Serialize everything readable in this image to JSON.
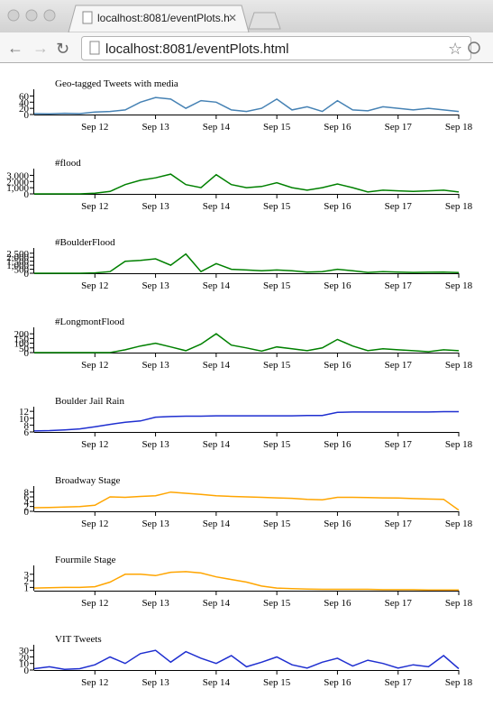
{
  "browser": {
    "tab_title": "localhost:8081/eventPlots.h",
    "url": "localhost:8081/eventPlots.html"
  },
  "chart_data": [
    {
      "type": "line",
      "title": "Geo-tagged Tweets with media",
      "color": "#4682b4",
      "x": [
        11,
        11.25,
        11.5,
        11.75,
        12,
        12.25,
        12.5,
        12.75,
        13,
        13.25,
        13.5,
        13.75,
        14,
        14.25,
        14.5,
        14.75,
        15,
        15.25,
        15.5,
        15.75,
        16,
        16.25,
        16.5,
        16.75,
        17,
        17.25,
        17.5,
        17.75,
        18
      ],
      "values": [
        3,
        2,
        4,
        3,
        8,
        10,
        15,
        40,
        55,
        50,
        20,
        45,
        40,
        15,
        10,
        20,
        50,
        15,
        25,
        10,
        45,
        15,
        12,
        25,
        20,
        15,
        20,
        15,
        10
      ],
      "xlim": [
        11,
        18
      ],
      "xticks": [
        {
          "value": 12,
          "label": "Sep 12"
        },
        {
          "value": 13,
          "label": "Sep 13"
        },
        {
          "value": 14,
          "label": "Sep 14"
        },
        {
          "value": 15,
          "label": "Sep 15"
        },
        {
          "value": 16,
          "label": "Sep 16"
        },
        {
          "value": 17,
          "label": "Sep 17"
        },
        {
          "value": 18,
          "label": "Sep 18"
        }
      ],
      "ylim": [
        0,
        70
      ],
      "yticks": [
        0,
        20,
        40,
        60
      ]
    },
    {
      "type": "line",
      "title": "#flood",
      "color": "#008000",
      "x": [
        11,
        11.25,
        11.5,
        11.75,
        12,
        12.25,
        12.5,
        12.75,
        13,
        13.25,
        13.5,
        13.75,
        14,
        14.25,
        14.5,
        14.75,
        15,
        15.25,
        15.5,
        15.75,
        16,
        16.25,
        16.5,
        16.75,
        17,
        17.25,
        17.5,
        17.75,
        18
      ],
      "values": [
        0,
        0,
        0,
        0,
        100,
        400,
        1500,
        2200,
        2600,
        3200,
        1500,
        1000,
        3100,
        1500,
        1000,
        1200,
        1800,
        1000,
        600,
        1000,
        1600,
        1000,
        300,
        600,
        500,
        400,
        500,
        600,
        300
      ],
      "xlim": [
        11,
        18
      ],
      "xticks": [
        {
          "value": 12,
          "label": "Sep 12"
        },
        {
          "value": 13,
          "label": "Sep 13"
        },
        {
          "value": 14,
          "label": "Sep 14"
        },
        {
          "value": 15,
          "label": "Sep 15"
        },
        {
          "value": 16,
          "label": "Sep 16"
        },
        {
          "value": 17,
          "label": "Sep 17"
        },
        {
          "value": 18,
          "label": "Sep 18"
        }
      ],
      "ylim": [
        0,
        3500
      ],
      "yticks": [
        0,
        {
          "value": 1000,
          "label": "1,000"
        },
        {
          "value": 2000,
          "label": "2,000"
        },
        {
          "value": 3000,
          "label": "3,000"
        }
      ]
    },
    {
      "type": "line",
      "title": "#BoulderFlood",
      "color": "#008000",
      "x": [
        11,
        11.25,
        11.5,
        11.75,
        12,
        12.25,
        12.5,
        12.75,
        13,
        13.25,
        13.5,
        13.75,
        14,
        14.25,
        14.5,
        14.75,
        15,
        15.25,
        15.5,
        15.75,
        16,
        16.25,
        16.5,
        16.75,
        17,
        17.25,
        17.5,
        17.75,
        18
      ],
      "values": [
        0,
        0,
        0,
        0,
        50,
        200,
        1500,
        1600,
        1800,
        1000,
        2400,
        200,
        1200,
        500,
        400,
        300,
        400,
        300,
        150,
        200,
        500,
        300,
        100,
        200,
        150,
        100,
        120,
        150,
        80
      ],
      "xlim": [
        11,
        18
      ],
      "xticks": [
        {
          "value": 12,
          "label": "Sep 12"
        },
        {
          "value": 13,
          "label": "Sep 13"
        },
        {
          "value": 14,
          "label": "Sep 14"
        },
        {
          "value": 15,
          "label": "Sep 15"
        },
        {
          "value": 16,
          "label": "Sep 16"
        },
        {
          "value": 17,
          "label": "Sep 17"
        },
        {
          "value": 18,
          "label": "Sep 18"
        }
      ],
      "ylim": [
        0,
        2700
      ],
      "yticks": [
        0,
        500,
        {
          "value": 1000,
          "label": "1,000"
        },
        {
          "value": 1500,
          "label": "1,500"
        },
        {
          "value": 2000,
          "label": "2,000"
        },
        {
          "value": 2500,
          "label": "2,500"
        }
      ]
    },
    {
      "type": "line",
      "title": "#LongmontFlood",
      "color": "#008000",
      "x": [
        11,
        11.25,
        11.5,
        11.75,
        12,
        12.25,
        12.5,
        12.75,
        13,
        13.25,
        13.5,
        13.75,
        14,
        14.25,
        14.5,
        14.75,
        15,
        15.25,
        15.5,
        15.75,
        16,
        16.25,
        16.5,
        16.75,
        17,
        17.25,
        17.5,
        17.75,
        18
      ],
      "values": [
        0,
        0,
        0,
        0,
        0,
        0,
        30,
        70,
        100,
        60,
        20,
        90,
        200,
        80,
        50,
        15,
        60,
        40,
        20,
        50,
        140,
        70,
        20,
        40,
        30,
        20,
        10,
        30,
        20
      ],
      "xlim": [
        11,
        18
      ],
      "xticks": [
        {
          "value": 12,
          "label": "Sep 12"
        },
        {
          "value": 13,
          "label": "Sep 13"
        },
        {
          "value": 14,
          "label": "Sep 14"
        },
        {
          "value": 15,
          "label": "Sep 15"
        },
        {
          "value": 16,
          "label": "Sep 16"
        },
        {
          "value": 17,
          "label": "Sep 17"
        },
        {
          "value": 18,
          "label": "Sep 18"
        }
      ],
      "ylim": [
        0,
        230
      ],
      "yticks": [
        0,
        50,
        100,
        150,
        200
      ]
    },
    {
      "type": "line",
      "title": "Boulder Jail Rain",
      "color": "#1f2fd0",
      "x": [
        11,
        11.25,
        11.5,
        11.75,
        12,
        12.25,
        12.5,
        12.75,
        13,
        13.25,
        13.5,
        13.75,
        14,
        14.25,
        14.5,
        14.75,
        15,
        15.25,
        15.5,
        15.75,
        16,
        16.25,
        16.5,
        16.75,
        17,
        17.25,
        17.5,
        17.75,
        18
      ],
      "values": [
        6.3,
        6.4,
        6.6,
        6.9,
        7.5,
        8.2,
        8.8,
        9.2,
        10.3,
        10.5,
        10.6,
        10.6,
        10.7,
        10.7,
        10.7,
        10.7,
        10.7,
        10.7,
        10.8,
        10.8,
        11.7,
        11.8,
        11.8,
        11.8,
        11.8,
        11.8,
        11.8,
        11.9,
        11.9
      ],
      "xlim": [
        11,
        18
      ],
      "xticks": [
        {
          "value": 12,
          "label": "Sep 12"
        },
        {
          "value": 13,
          "label": "Sep 13"
        },
        {
          "value": 14,
          "label": "Sep 14"
        },
        {
          "value": 15,
          "label": "Sep 15"
        },
        {
          "value": 16,
          "label": "Sep 16"
        },
        {
          "value": 17,
          "label": "Sep 17"
        },
        {
          "value": 18,
          "label": "Sep 18"
        }
      ],
      "ylim": [
        6,
        12.3
      ],
      "yticks": [
        6,
        8,
        10,
        12
      ]
    },
    {
      "type": "line",
      "title": "Broadway Stage",
      "color": "#ffa500",
      "x": [
        11,
        11.25,
        11.5,
        11.75,
        12,
        12.25,
        12.5,
        12.75,
        13,
        13.25,
        13.5,
        13.75,
        14,
        14.25,
        14.5,
        14.75,
        15,
        15.25,
        15.5,
        15.75,
        16,
        16.25,
        16.5,
        16.75,
        17,
        17.25,
        17.5,
        17.75,
        18
      ],
      "values": [
        1.5,
        1.6,
        1.8,
        2,
        2.5,
        6,
        5.8,
        6.2,
        6.5,
        8,
        7.5,
        7,
        6.5,
        6.2,
        6,
        5.8,
        5.6,
        5.4,
        5,
        4.8,
        5.8,
        5.8,
        5.7,
        5.6,
        5.5,
        5.3,
        5.1,
        5,
        0.5
      ],
      "xlim": [
        11,
        18
      ],
      "xticks": [
        {
          "value": 12,
          "label": "Sep 12"
        },
        {
          "value": 13,
          "label": "Sep 13"
        },
        {
          "value": 14,
          "label": "Sep 14"
        },
        {
          "value": 15,
          "label": "Sep 15"
        },
        {
          "value": 16,
          "label": "Sep 16"
        },
        {
          "value": 17,
          "label": "Sep 17"
        },
        {
          "value": 18,
          "label": "Sep 18"
        }
      ],
      "ylim": [
        0,
        9
      ],
      "yticks": [
        0,
        2,
        4,
        6,
        8
      ]
    },
    {
      "type": "line",
      "title": "Fourmile Stage",
      "color": "#ffa500",
      "x": [
        11,
        11.25,
        11.5,
        11.75,
        12,
        12.25,
        12.5,
        12.75,
        13,
        13.25,
        13.5,
        13.75,
        14,
        14.25,
        14.5,
        14.75,
        15,
        15.25,
        15.5,
        15.75,
        16,
        16.25,
        16.5,
        16.75,
        17,
        17.25,
        17.5,
        17.75,
        18
      ],
      "values": [
        0.9,
        0.95,
        1,
        1,
        1.1,
        1.8,
        3,
        3,
        2.8,
        3.3,
        3.4,
        3.2,
        2.6,
        2.2,
        1.8,
        1.2,
        0.9,
        0.8,
        0.75,
        0.7,
        0.7,
        0.7,
        0.7,
        0.65,
        0.65,
        0.65,
        0.6,
        0.6,
        0.6
      ],
      "xlim": [
        11,
        18
      ],
      "xticks": [
        {
          "value": 12,
          "label": "Sep 12"
        },
        {
          "value": 13,
          "label": "Sep 13"
        },
        {
          "value": 14,
          "label": "Sep 14"
        },
        {
          "value": 15,
          "label": "Sep 15"
        },
        {
          "value": 16,
          "label": "Sep 16"
        },
        {
          "value": 17,
          "label": "Sep 17"
        },
        {
          "value": 18,
          "label": "Sep 18"
        }
      ],
      "ylim": [
        0.5,
        3.8
      ],
      "yticks": [
        1,
        2,
        3
      ]
    },
    {
      "type": "line",
      "title": "VIT Tweets",
      "color": "#1f2fd0",
      "x": [
        11,
        11.25,
        11.5,
        11.75,
        12,
        12.25,
        12.5,
        12.75,
        13,
        13.25,
        13.5,
        13.75,
        14,
        14.25,
        14.5,
        14.75,
        15,
        15.25,
        15.5,
        15.75,
        16,
        16.25,
        16.5,
        16.75,
        17,
        17.25,
        17.5,
        17.75,
        18
      ],
      "values": [
        2,
        5,
        1,
        2,
        8,
        20,
        10,
        25,
        30,
        12,
        28,
        18,
        10,
        22,
        5,
        12,
        20,
        8,
        3,
        12,
        18,
        6,
        15,
        10,
        3,
        8,
        5,
        22,
        2
      ],
      "xlim": [
        11,
        18
      ],
      "xticks": [
        {
          "value": 12,
          "label": "Sep 12"
        },
        {
          "value": 13,
          "label": "Sep 13"
        },
        {
          "value": 14,
          "label": "Sep 14"
        },
        {
          "value": 15,
          "label": "Sep 15"
        },
        {
          "value": 16,
          "label": "Sep 16"
        },
        {
          "value": 17,
          "label": "Sep 17"
        },
        {
          "value": 18,
          "label": "Sep 18"
        }
      ],
      "ylim": [
        0,
        33
      ],
      "yticks": [
        0,
        10,
        20,
        30
      ]
    }
  ]
}
